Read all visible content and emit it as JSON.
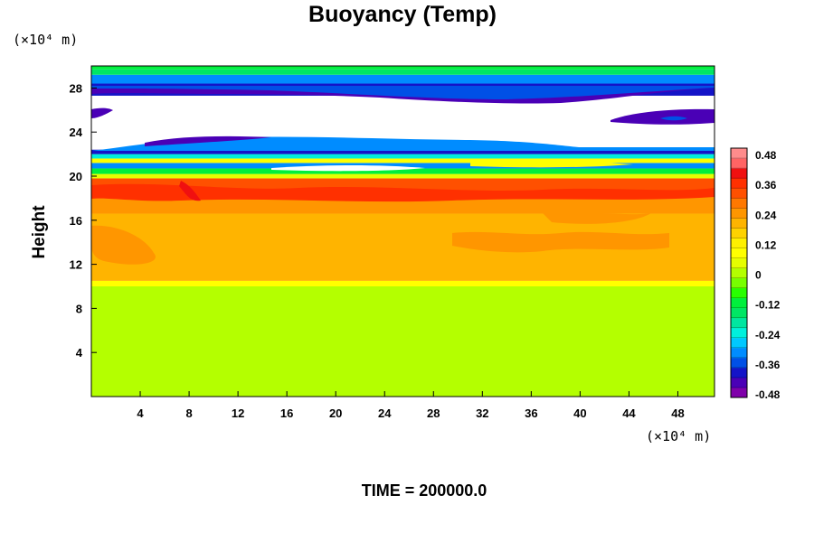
{
  "chart_data": {
    "type": "heatmap",
    "title": "Buoyancy (Temp)",
    "ylabel": "Height",
    "xlabel": "",
    "x_unit_label": "(×10⁴ m)",
    "y_unit_label": "(×10⁴ m)",
    "x_ticks": [
      "4",
      "8",
      "12",
      "16",
      "20",
      "24",
      "28",
      "32",
      "36",
      "40",
      "44",
      "48"
    ],
    "y_ticks": [
      "4",
      "8",
      "12",
      "16",
      "20",
      "24",
      "28"
    ],
    "xlim": [
      0,
      51
    ],
    "ylim": [
      0,
      30
    ],
    "colorbar": {
      "range": [
        -0.48,
        0.48
      ],
      "labels": [
        "0.48",
        "0.36",
        "0.24",
        "0.12",
        "0",
        "-0.12",
        "-0.24",
        "-0.36",
        "-0.48"
      ],
      "colors": [
        "#7f00aa",
        "#4a00b6",
        "#1414c8",
        "#0050e6",
        "#008cff",
        "#00c8ff",
        "#00f0dc",
        "#00e6a0",
        "#00e664",
        "#00f03c",
        "#28ff00",
        "#78ff00",
        "#b4ff00",
        "#e6ff00",
        "#ffff00",
        "#fff000",
        "#ffd200",
        "#ffb400",
        "#ff9600",
        "#ff7800",
        "#ff5000",
        "#ff3000",
        "#f01010",
        "#ff6464",
        "#ff8c8c"
      ]
    },
    "layers": [
      {
        "from": 0,
        "to": 10,
        "value": 0.0
      },
      {
        "from": 10,
        "to": 10.5,
        "value": 0.06
      },
      {
        "from": 10.5,
        "to": 16.6,
        "value": 0.18
      },
      {
        "from": 16.6,
        "to": 18.2,
        "value": 0.22
      },
      {
        "from": 18.2,
        "to": 19.8,
        "value": 0.3
      },
      {
        "from": 19.8,
        "to": 20.2,
        "value": 0.04
      },
      {
        "from": 20.2,
        "to": 20.7,
        "value": -0.1
      },
      {
        "from": 20.7,
        "to": 21.2,
        "value": -0.3
      },
      {
        "from": 21.2,
        "to": 21.6,
        "value": 0.06
      },
      {
        "from": 21.6,
        "to": 22.0,
        "value": -0.22
      },
      {
        "from": 22.0,
        "to": 22.4,
        "value": -0.4
      },
      {
        "from": 27.3,
        "to": 28.4,
        "value": -0.4
      },
      {
        "from": 28.4,
        "to": 29.2,
        "value": -0.3
      },
      {
        "from": 29.2,
        "to": 29.7,
        "value": -0.16
      },
      {
        "from": 29.7,
        "to": 30,
        "value": -0.1
      }
    ],
    "time_label": "TIME = 200000.0"
  }
}
